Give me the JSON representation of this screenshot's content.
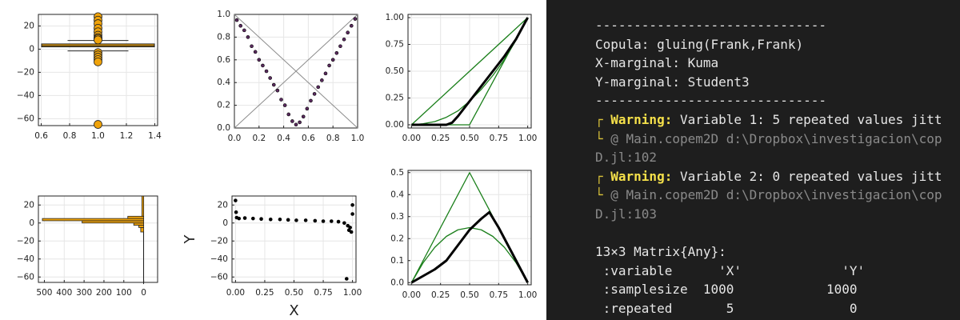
{
  "chart_data": [
    {
      "type": "box",
      "x": 1,
      "q1": 2,
      "median": 3,
      "q3": 4.5,
      "whisker_low": -1.5,
      "whisker_high": 7.5,
      "outliers": [
        28,
        25,
        22,
        18,
        15,
        12,
        10,
        9,
        8,
        -3,
        -5,
        -7,
        -9,
        -11,
        -65
      ],
      "color": "#f0a30a",
      "xlim": [
        0.58,
        1.42
      ],
      "xticks": [
        0.6,
        0.8,
        {
          "value": 1,
          "label": "1.0"
        },
        1.2,
        1.4
      ],
      "ylim": [
        -66,
        30
      ],
      "yticks": [
        20,
        0,
        {
          "value": -20,
          "label": "−20"
        },
        {
          "value": -40,
          "label": "−40"
        },
        {
          "value": -60,
          "label": "−60"
        }
      ],
      "grid": true
    },
    {
      "type": "scatter",
      "color": "#5a2a5e",
      "x": [
        0.02,
        0.05,
        0.08,
        0.11,
        0.14,
        0.17,
        0.2,
        0.23,
        0.26,
        0.29,
        0.32,
        0.35,
        0.38,
        0.41,
        0.44,
        0.47,
        0.5,
        0.53,
        0.56,
        0.59,
        0.62,
        0.65,
        0.68,
        0.71,
        0.74,
        0.77,
        0.8,
        0.83,
        0.86,
        0.89,
        0.92,
        0.95,
        0.98
      ],
      "values": [
        0.95,
        0.9,
        0.86,
        0.8,
        0.72,
        0.67,
        0.6,
        0.55,
        0.5,
        0.44,
        0.38,
        0.33,
        0.25,
        0.2,
        0.12,
        0.06,
        0.03,
        0.05,
        0.1,
        0.17,
        0.24,
        0.3,
        0.36,
        0.42,
        0.48,
        0.55,
        0.6,
        0.66,
        0.72,
        0.78,
        0.84,
        0.9,
        0.96
      ],
      "series": [
        {
          "color": "#8c8c8c",
          "x": [
            0,
            1
          ],
          "values": [
            0,
            1
          ]
        },
        {
          "color": "#8c8c8c",
          "x": [
            0,
            1
          ],
          "values": [
            1,
            0
          ]
        }
      ],
      "xlim": [
        0,
        1
      ],
      "xticks": [
        {
          "value": 0,
          "label": "0.0"
        },
        0.2,
        0.4,
        0.6,
        0.8,
        {
          "value": 1,
          "label": "1.0"
        }
      ],
      "ylim": [
        0,
        1
      ],
      "yticks": [
        {
          "value": 0,
          "label": "0.0"
        },
        0.2,
        0.4,
        0.6,
        0.8,
        {
          "value": 1,
          "label": "1.0"
        }
      ],
      "grid": true
    },
    {
      "type": "line",
      "series": [
        {
          "color": "#1a7f1a",
          "line_width": 1.3,
          "x": [
            0,
            1
          ],
          "values": [
            0,
            1
          ]
        },
        {
          "color": "#1a7f1a",
          "line_width": 1.3,
          "x": [
            0,
            0.5,
            1
          ],
          "values": [
            0,
            0,
            1
          ]
        },
        {
          "color": "#1a7f1a",
          "line_width": 1.3,
          "x": [
            0,
            0.1,
            0.2,
            0.3,
            0.4,
            0.5,
            0.6,
            0.7,
            0.8,
            0.9,
            1
          ],
          "values": [
            0,
            0.01,
            0.03,
            0.07,
            0.13,
            0.22,
            0.33,
            0.46,
            0.61,
            0.79,
            1
          ]
        },
        {
          "color": "#000000",
          "line_width": 3,
          "x": [
            0,
            0.3,
            0.35,
            0.4,
            0.5,
            0.6,
            0.7,
            0.8,
            0.9,
            1
          ],
          "values": [
            0,
            0,
            0.02,
            0.08,
            0.22,
            0.36,
            0.5,
            0.64,
            0.8,
            1
          ]
        }
      ],
      "xlim": [
        -0.03,
        1.03
      ],
      "xticks": [
        {
          "value": 0,
          "label": "0.00"
        },
        0.25,
        {
          "value": 0.5,
          "label": "0.50"
        },
        0.75,
        {
          "value": 1,
          "label": "1.00"
        }
      ],
      "ylim": [
        -0.03,
        1.03
      ],
      "yticks": [
        {
          "value": 0,
          "label": "0.00"
        },
        0.25,
        {
          "value": 0.5,
          "label": "0.50"
        },
        0.75,
        {
          "value": 1,
          "label": "1.00"
        }
      ],
      "grid": true
    },
    {
      "type": "histogram",
      "orientation": "horizontal",
      "color": "#f0a30a",
      "bins": [
        -67.5,
        -10,
        -5,
        -2.5,
        0,
        2.5,
        5,
        7.5,
        30
      ],
      "counts": [
        1,
        15,
        25,
        50,
        310,
        510,
        80,
        9
      ],
      "xlim": [
        530,
        -70
      ],
      "xticks": [
        500,
        400,
        300,
        200,
        100,
        0
      ],
      "ylim": [
        -66,
        30
      ],
      "yticks": [
        20,
        0,
        {
          "value": -20,
          "label": "−20"
        },
        {
          "value": -40,
          "label": "−40"
        },
        {
          "value": -60,
          "label": "−60"
        }
      ],
      "grid": true
    },
    {
      "type": "scatter",
      "color": "#000000",
      "xlabel": "X",
      "ylabel": "Y",
      "x": [
        0,
        0.005,
        0.01,
        0.03,
        0.08,
        0.15,
        0.22,
        0.3,
        0.38,
        0.45,
        0.52,
        0.6,
        0.68,
        0.75,
        0.82,
        0.88,
        0.93,
        0.96,
        0.97,
        0.98,
        0.99,
        1,
        1,
        0.95
      ],
      "values": [
        25,
        12,
        6,
        5,
        5.5,
        5,
        4.5,
        4,
        4,
        3.5,
        3,
        3,
        2.5,
        2,
        2,
        1.5,
        0,
        -3,
        -8,
        -5,
        -10,
        20,
        10,
        -62
      ],
      "xlim": [
        -0.03,
        1.03
      ],
      "xticks": [
        {
          "value": 0,
          "label": "0.00"
        },
        0.25,
        {
          "value": 0.5,
          "label": "0.50"
        },
        0.75,
        {
          "value": 1,
          "label": "1.00"
        }
      ],
      "ylim": [
        -66,
        30
      ],
      "yticks": [
        20,
        0,
        {
          "value": -20,
          "label": "−20"
        },
        {
          "value": -40,
          "label": "−40"
        },
        {
          "value": -60,
          "label": "−60"
        }
      ],
      "grid": true
    },
    {
      "type": "line",
      "series": [
        {
          "color": "#1a7f1a",
          "line_width": 1.3,
          "x": [
            0,
            0.5,
            1
          ],
          "values": [
            0,
            0.5,
            0
          ]
        },
        {
          "color": "#1a7f1a",
          "line_width": 1.3,
          "x": [
            0,
            0.1,
            0.2,
            0.3,
            0.4,
            0.5,
            0.6,
            0.7,
            0.8,
            0.9,
            1
          ],
          "values": [
            0,
            0.09,
            0.16,
            0.21,
            0.24,
            0.25,
            0.24,
            0.21,
            0.16,
            0.09,
            0
          ]
        },
        {
          "color": "#000000",
          "line_width": 3,
          "x": [
            0,
            0.1,
            0.2,
            0.3,
            0.4,
            0.5,
            0.6,
            0.67,
            0.75,
            0.85,
            1
          ],
          "values": [
            0,
            0.03,
            0.06,
            0.1,
            0.17,
            0.24,
            0.29,
            0.32,
            0.25,
            0.15,
            0
          ]
        }
      ],
      "xlim": [
        -0.03,
        1.03
      ],
      "xticks": [
        {
          "value": 0,
          "label": "0.00"
        },
        0.25,
        {
          "value": 0.5,
          "label": "0.50"
        },
        0.75,
        {
          "value": 1,
          "label": "1.00"
        }
      ],
      "ylim": [
        -0.01,
        0.51
      ],
      "yticks": [
        {
          "value": 0,
          "label": "0.0"
        },
        0.1,
        0.2,
        0.3,
        0.4,
        0.5
      ],
      "grid": true
    }
  ],
  "terminal": {
    "separator_top": "------------------------------",
    "copula": "Copula: gluing(Frank,Frank)",
    "x_marginal": "X-marginal: Kuma",
    "y_marginal": "Y-marginal: Student3",
    "separator_bottom": "------------------------------",
    "warnings": [
      {
        "label": "Warning:",
        "message": " Variable 1: 5 repeated values jitt",
        "source": "@ Main.copem2D d:\\Dropbox\\investigacion\\cop",
        "file": "D.jl:102"
      },
      {
        "label": "Warning:",
        "message": " Variable 2: 0 repeated values jitt",
        "source": "@ Main.copem2D d:\\Dropbox\\investigacion\\cop",
        "file": "D.jl:103"
      }
    ],
    "matrix_header": "13×3 Matrix{Any}:",
    "matrix_rows": [
      " :variable      'X'             'Y'",
      " :samplesize  1000            1000",
      " :repeated       5               0"
    ]
  }
}
